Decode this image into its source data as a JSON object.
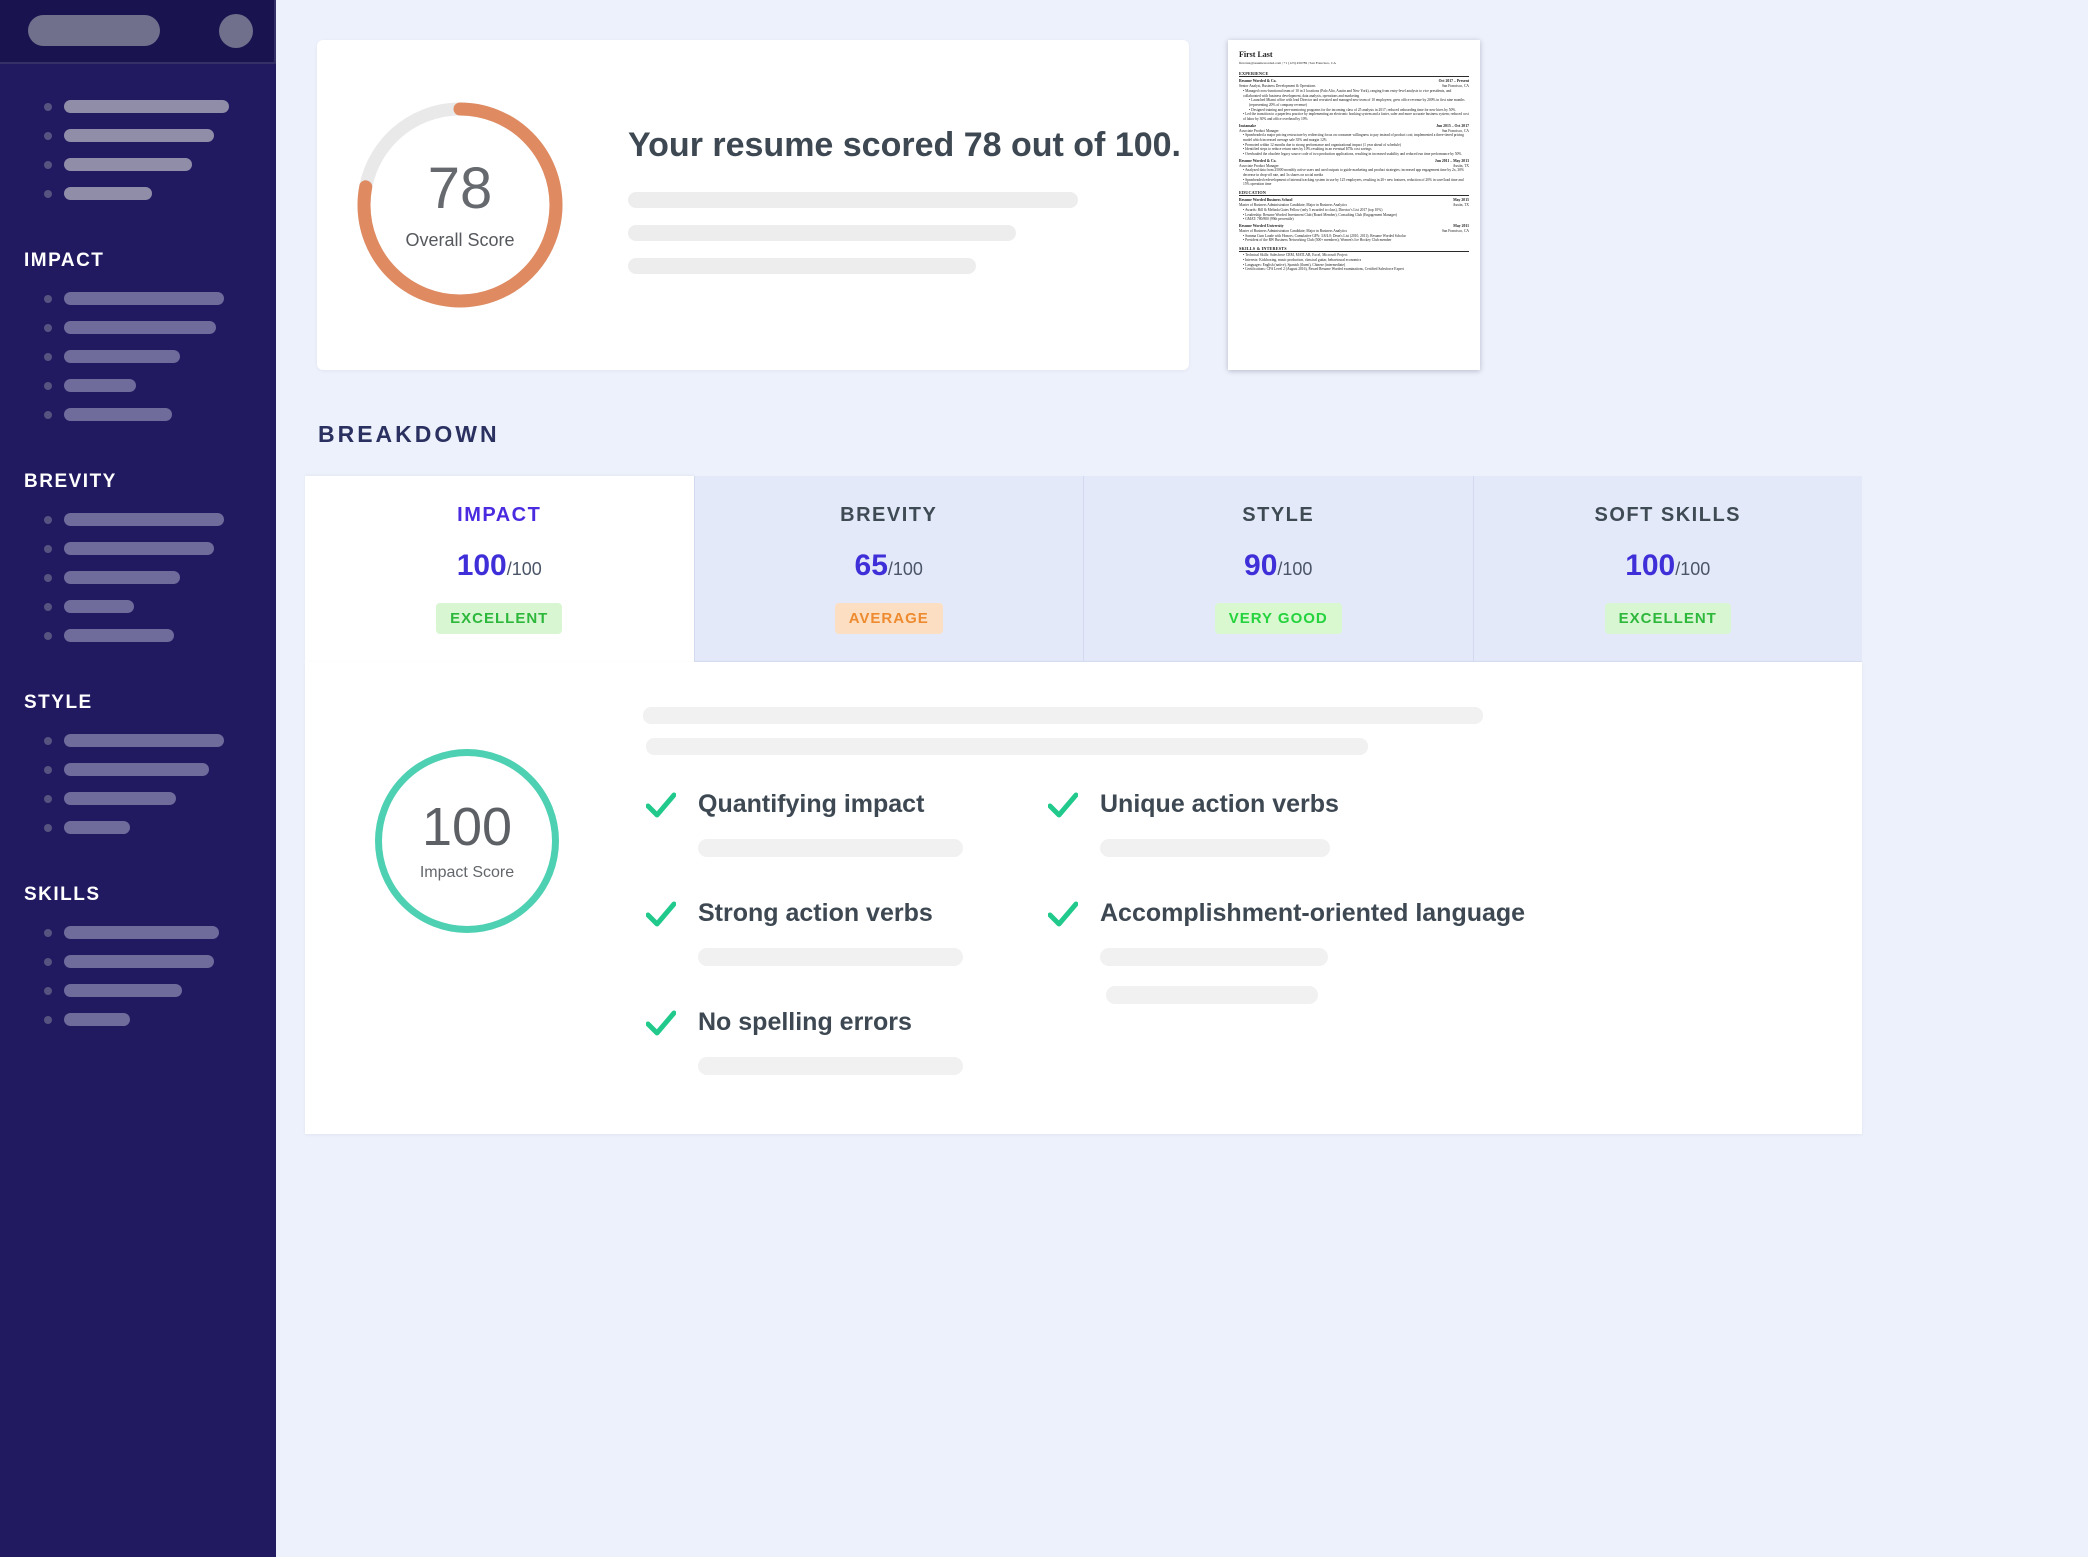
{
  "sidebar": {
    "sections": [
      {
        "title": "IMPACT"
      },
      {
        "title": "BREVITY"
      },
      {
        "title": "STYLE"
      },
      {
        "title": "SKILLS"
      }
    ]
  },
  "header_card": {
    "score": "78",
    "score_label": "Overall Score",
    "headline": "Your resume scored 78 out of 100."
  },
  "breakdown": {
    "title": "BREAKDOWN",
    "tabs": [
      {
        "label": "IMPACT",
        "score": "100",
        "denom": "/100",
        "badge": "EXCELLENT"
      },
      {
        "label": "BREVITY",
        "score": "65",
        "denom": "/100",
        "badge": "AVERAGE"
      },
      {
        "label": "STYLE",
        "score": "90",
        "denom": "/100",
        "badge": "VERY GOOD"
      },
      {
        "label": "SOFT SKILLS",
        "score": "100",
        "denom": "/100",
        "badge": "EXCELLENT"
      }
    ]
  },
  "panel": {
    "score": "100",
    "score_label": "Impact Score",
    "checks": [
      {
        "label": "Quantifying impact"
      },
      {
        "label": "Unique action verbs"
      },
      {
        "label": "Strong action verbs"
      },
      {
        "label": "Accomplishment-oriented language"
      },
      {
        "label": "No spelling errors"
      }
    ]
  },
  "resume_thumbnail": {
    "lines": [
      {
        "s": "name",
        "l": "First Last"
      },
      {
        "s": "contact",
        "l": "first.last@resumeworded.com  |  +1 (123) 456789  |  San Francisco, CA"
      },
      {
        "s": "sec",
        "l": "EXPERIENCE"
      },
      {
        "s": "row",
        "l": "Resume Worded & Co.",
        "r": "Oct 2017 – Present"
      },
      {
        "s": "sub",
        "l": "Senior Analyst, Business Development & Operations",
        "r": "San Francisco, CA"
      },
      {
        "s": "b1",
        "l": "Managed cross-functional team of 10 in 3 locations (Palo Alto, Austin and New York), ranging from entry-level analysts to vice presidents, and collaborated with business development, data analysis, operations and marketing"
      },
      {
        "s": "b2",
        "l": "Launched Miami office with lead Director and recruited and managed new team of 10 employees; grew office revenue by 200% in first nine months (representing 20% of company revenue)"
      },
      {
        "s": "b2",
        "l": "Designed training and peer-mentoring programs for the incoming class of 25 analysts in 2017; reduced onboarding time for new hires by 50%"
      },
      {
        "s": "b1",
        "l": "Led the transition to a paperless practice by implementing an electronic booking system and a faster, safer and more accurate business system; reduced cost of labor by 30% and office overhead by 10%"
      },
      {
        "s": "row",
        "l": "Instamake",
        "r": "Jun 2015 – Oct 2017"
      },
      {
        "s": "sub",
        "l": "Associate Product Manager",
        "r": "San Francisco, CA"
      },
      {
        "s": "b1",
        "l": "Spearheaded a major pricing restructure by redirecting focus on consumer willingness to pay instead of product cost; implemented a three-tiered pricing model which increased average sale 35% and margin 12%"
      },
      {
        "s": "b1",
        "l": "Promoted within 12 months due to strong performance and organizational impact (1 year ahead of schedule)"
      },
      {
        "s": "b1",
        "l": "Identified steps to reduce return rates by 10% resulting in an eventual $75k cost savings"
      },
      {
        "s": "b1",
        "l": "Overhauled the obsolete legacy source code of two production applications, resulting in increased usability and reduced run time performance by 50%"
      },
      {
        "s": "row",
        "l": "Resume Worded & Co.",
        "r": "Jun 2011 – May 2013"
      },
      {
        "s": "sub",
        "l": "Associate Product Manager",
        "r": "Austin, TX"
      },
      {
        "s": "b1",
        "l": "Analyzed data from 25000 monthly active users and used outputs to guide marketing and product strategies; increased app engagement time by 2x, 30% decrease in drop-off rate, and 3x shares on social media"
      },
      {
        "s": "b1",
        "l": "Spearheaded redevelopment of internal tracking system in use by 125 employees, resulting in 20+ new features, reduction of 20% in save/load time and 15% operation time"
      },
      {
        "s": "sec",
        "l": "EDUCATION"
      },
      {
        "s": "row",
        "l": "Resume Worded Business School",
        "r": "May 2015"
      },
      {
        "s": "sub",
        "l": "Master of Business Administration Candidate; Major in Business Analytics",
        "r": "Austin, TX"
      },
      {
        "s": "b1",
        "l": "Awards: Bill & Melinda Gates Fellow (only 5 awarded to class), Director's List 2017 (top 10%)"
      },
      {
        "s": "b1",
        "l": "Leadership: Resume Worded Investment Club (Board Member), Consulting Club (Engagement Manager)"
      },
      {
        "s": "b1",
        "l": "GMAT: 780/800 (99th percentile)"
      },
      {
        "s": "row",
        "l": "Resume Worded University",
        "r": "May 2011"
      },
      {
        "s": "sub",
        "l": "Master of Business Administration Candidate; Major in Business Analytics",
        "r": "San Francisco, CA"
      },
      {
        "s": "b1",
        "l": "Summa Cum Laude with Honors; Cumulative GPA: 3.8/4.0; Dean's List (2010, 2011); Resume Worded Scholar"
      },
      {
        "s": "b1",
        "l": "President of the RW Business Networking Club (500+ members); Women's Ice Hockey Club member"
      },
      {
        "s": "sec",
        "l": "SKILLS & INTERESTS"
      },
      {
        "s": "b1",
        "l": "Technical Skills: Salesforce CRM, MATLAB, Excel, Microsoft Project"
      },
      {
        "s": "b1",
        "l": "Interests: Kickboxing, music production, classical guitar, behavioural economics"
      },
      {
        "s": "b1",
        "l": "Languages: English (native), Spanish (fluent), Chinese (intermediate)"
      },
      {
        "s": "b1",
        "l": "Certifications: CFA Level 2 (August 2016), Passed Resume Worded examinations, Certified Salesforce Expert"
      }
    ]
  },
  "colors": {
    "sidebar_bg": "#211a60",
    "main_bg": "#edf1fb",
    "accent_purple": "#4a2be0",
    "score_purple": "#3f2fd8",
    "ring_orange": "#df8a60",
    "ring_track": "#e9e9e9",
    "impact_circle_teal": "#4ed0b2",
    "check_green": "#21ca8c",
    "badge_excellent_bg": "#d9f6d2",
    "badge_excellent_text": "#2db83c",
    "badge_average_bg": "#fcdfc2",
    "badge_average_text": "#ee8a2f",
    "badge_verygood_bg": "#d9f8cf",
    "badge_verygood_text": "#24d33d"
  }
}
